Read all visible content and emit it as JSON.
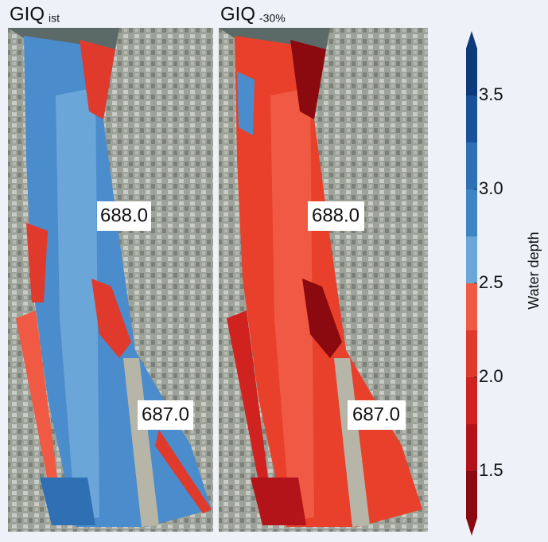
{
  "panels": [
    {
      "title": "GIQ",
      "subscript": "ist",
      "km_labels": [
        "688.0",
        "687.0"
      ]
    },
    {
      "title": "GIQ",
      "subscript": "-30%",
      "km_labels": [
        "688.0",
        "687.0"
      ]
    }
  ],
  "colorbar": {
    "label": "Water depth",
    "min": 1.25,
    "max": 3.75,
    "colors": [
      "#8b0a0f",
      "#b3141a",
      "#d0231f",
      "#e03a2c",
      "#f05a44",
      "#6aa6d8",
      "#3f84c4",
      "#2f6fb3",
      "#1a529a",
      "#0d3a7a"
    ],
    "ticks": [
      {
        "value": 3.5,
        "label": "3.5"
      },
      {
        "value": 3.0,
        "label": "3.0"
      },
      {
        "value": 2.5,
        "label": "2.5"
      },
      {
        "value": 2.0,
        "label": "2.0"
      },
      {
        "value": 1.5,
        "label": "1.5"
      }
    ]
  }
}
